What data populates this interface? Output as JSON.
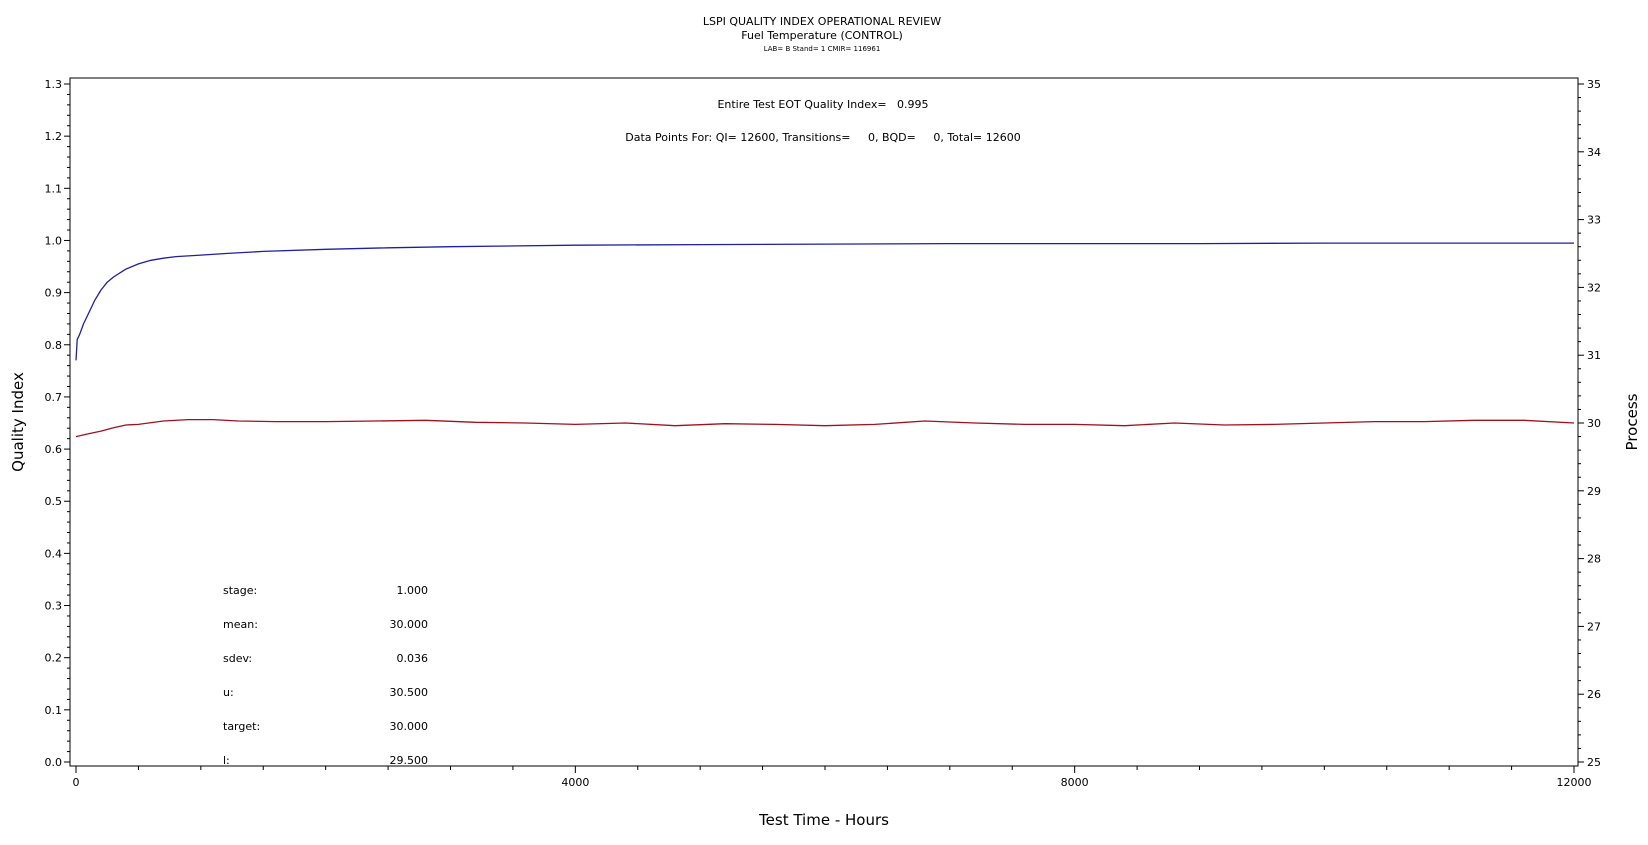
{
  "chart_data": {
    "type": "line",
    "title": "LSPI QUALITY INDEX OPERATIONAL REVIEW",
    "subtitle": "Fuel Temperature (CONTROL)",
    "subsubtitle": "LAB= B Stand= 1 CMIR= 116961",
    "xlabel": "Test Time - Hours",
    "ylabel": "Quality Index",
    "y2label": "Process",
    "xlim": [
      0,
      12000
    ],
    "ylim": [
      0.0,
      1.3
    ],
    "y2lim": [
      25,
      35
    ],
    "x_ticks": [
      "0",
      "4000",
      "8000",
      "12000"
    ],
    "y_ticks": [
      "0.0",
      "0.1",
      "0.2",
      "0.3",
      "0.4",
      "0.5",
      "0.6",
      "0.7",
      "0.8",
      "0.9",
      "1.0",
      "1.1",
      "1.2",
      "1.3"
    ],
    "y2_ticks": [
      "25",
      "26",
      "27",
      "28",
      "29",
      "30",
      "31",
      "32",
      "33",
      "34",
      "35"
    ],
    "grid": false,
    "annotations": {
      "eot_line": "Entire Test EOT Quality Index=   0.995",
      "datapoints_line": "Data Points For: QI= 12600, Transitions=     0, BQD=     0, Total= 12600"
    },
    "stats": [
      {
        "label": "stage:",
        "value": "1.000"
      },
      {
        "label": "mean:",
        "value": "30.000"
      },
      {
        "label": "sdev:",
        "value": "0.036"
      },
      {
        "label": "u:",
        "value": "30.500"
      },
      {
        "label": "target:",
        "value": "30.000"
      },
      {
        "label": "l:",
        "value": "29.500"
      }
    ],
    "series": [
      {
        "axis": "left",
        "color": "#1f1fa0",
        "x": [
          0,
          10,
          30,
          60,
          100,
          150,
          200,
          250,
          300,
          400,
          500,
          600,
          700,
          800,
          1000,
          1200,
          1500,
          2000,
          2500,
          3000,
          4000,
          5000,
          6000,
          7000,
          8000,
          9000,
          10000,
          11000,
          12000
        ],
        "values": [
          0.77,
          0.81,
          0.82,
          0.84,
          0.86,
          0.885,
          0.905,
          0.92,
          0.93,
          0.945,
          0.955,
          0.962,
          0.966,
          0.969,
          0.972,
          0.975,
          0.979,
          0.983,
          0.986,
          0.988,
          0.991,
          0.992,
          0.993,
          0.994,
          0.994,
          0.994,
          0.995,
          0.995,
          0.995
        ]
      },
      {
        "axis": "right",
        "color": "#a01020",
        "x": [
          0,
          100,
          200,
          300,
          400,
          500,
          700,
          900,
          1100,
          1300,
          1600,
          2000,
          2400,
          2800,
          3200,
          3600,
          4000,
          4400,
          4800,
          5200,
          5600,
          6000,
          6400,
          6800,
          7200,
          7600,
          8000,
          8400,
          8800,
          9200,
          9600,
          10000,
          10400,
          10800,
          11200,
          11600,
          12000
        ],
        "values": [
          29.8,
          29.84,
          29.88,
          29.93,
          29.97,
          29.98,
          30.03,
          30.05,
          30.05,
          30.03,
          30.02,
          30.02,
          30.03,
          30.04,
          30.01,
          30.0,
          29.98,
          30.0,
          29.96,
          29.99,
          29.98,
          29.96,
          29.98,
          30.03,
          30.0,
          29.98,
          29.98,
          29.96,
          30.0,
          29.97,
          29.98,
          30.0,
          30.02,
          30.02,
          30.04,
          30.04,
          30.0
        ]
      }
    ]
  }
}
